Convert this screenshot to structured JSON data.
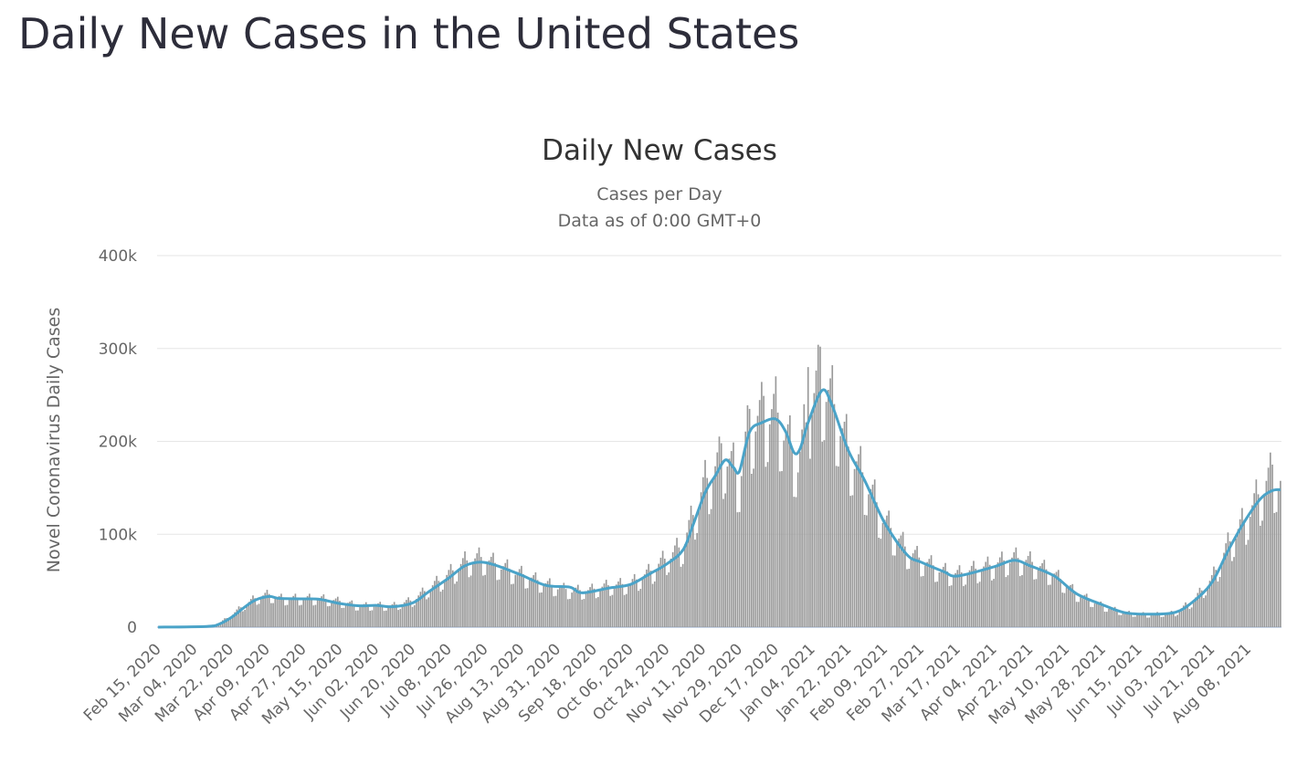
{
  "page": {
    "title": "Daily New Cases in the United States"
  },
  "chart_data": {
    "type": "bar",
    "title": "Daily New Cases",
    "subtitle": [
      "Cases per Day",
      "Data as of 0:00 GMT+0"
    ],
    "xlabel": "",
    "ylabel": "Novel Coronavirus Daily Cases",
    "ylim": [
      0,
      400000
    ],
    "yticks": [
      0,
      100000,
      200000,
      300000,
      400000
    ],
    "ytick_labels": [
      "0",
      "100k",
      "200k",
      "300k",
      "400k"
    ],
    "x_start": "2020-02-15",
    "x_end": "2021-08-24",
    "xtick_labels": [
      "Feb 15, 2020",
      "Mar 04, 2020",
      "Mar 22, 2020",
      "Apr 09, 2020",
      "Apr 27, 2020",
      "May 15, 2020",
      "Jun 02, 2020",
      "Jun 20, 2020",
      "Jul 08, 2020",
      "Jul 26, 2020",
      "Aug 13, 2020",
      "Aug 31, 2020",
      "Sep 18, 2020",
      "Oct 06, 2020",
      "Oct 24, 2020",
      "Nov 11, 2020",
      "Nov 29, 2020",
      "Dec 17, 2020",
      "Jan 04, 2021",
      "Jan 22, 2021",
      "Feb 09, 2021",
      "Feb 27, 2021",
      "Mar 17, 2021",
      "Apr 04, 2021",
      "Apr 22, 2021",
      "May 10, 2021",
      "May 28, 2021",
      "Jun 15, 2021",
      "Jul 03, 2021",
      "Jul 21, 2021",
      "Aug 08, 2021"
    ],
    "grid": true,
    "legend": "none",
    "series": [
      {
        "role": "daily-bars",
        "color": "#999999",
        "knots": [
          [
            "2020-02-15",
            0
          ],
          [
            "2020-03-10",
            1000
          ],
          [
            "2020-03-16",
            4000
          ],
          [
            "2020-03-22",
            12000
          ],
          [
            "2020-03-28",
            22000
          ],
          [
            "2020-04-04",
            31000
          ],
          [
            "2020-04-10",
            34000
          ],
          [
            "2020-04-15",
            30000
          ],
          [
            "2020-04-27",
            30000
          ],
          [
            "2020-05-05",
            30000
          ],
          [
            "2020-05-15",
            27000
          ],
          [
            "2020-05-25",
            22000
          ],
          [
            "2020-06-02",
            23000
          ],
          [
            "2020-06-10",
            22000
          ],
          [
            "2020-06-20",
            28000
          ],
          [
            "2020-06-28",
            40000
          ],
          [
            "2020-07-08",
            55000
          ],
          [
            "2020-07-16",
            68000
          ],
          [
            "2020-07-24",
            72000
          ],
          [
            "2020-08-01",
            65000
          ],
          [
            "2020-08-13",
            55000
          ],
          [
            "2020-08-25",
            45000
          ],
          [
            "2020-09-06",
            38000
          ],
          [
            "2020-09-15",
            38000
          ],
          [
            "2020-09-25",
            43000
          ],
          [
            "2020-10-06",
            45000
          ],
          [
            "2020-10-16",
            58000
          ],
          [
            "2020-10-24",
            72000
          ],
          [
            "2020-11-01",
            85000
          ],
          [
            "2020-11-06",
            115000
          ],
          [
            "2020-11-12",
            150000
          ],
          [
            "2020-11-17",
            165000
          ],
          [
            "2020-11-22",
            180000
          ],
          [
            "2020-11-29",
            155000
          ],
          [
            "2020-12-04",
            210000
          ],
          [
            "2020-12-10",
            220000
          ],
          [
            "2020-12-17",
            225000
          ],
          [
            "2020-12-22",
            200000
          ],
          [
            "2020-12-28",
            170000
          ],
          [
            "2021-01-02",
            220000
          ],
          [
            "2021-01-08",
            260000
          ],
          [
            "2021-01-14",
            235000
          ],
          [
            "2021-01-22",
            185000
          ],
          [
            "2021-01-30",
            155000
          ],
          [
            "2021-02-09",
            110000
          ],
          [
            "2021-02-20",
            80000
          ],
          [
            "2021-02-27",
            70000
          ],
          [
            "2021-03-10",
            58000
          ],
          [
            "2021-03-17",
            55000
          ],
          [
            "2021-04-04",
            65000
          ],
          [
            "2021-04-14",
            72000
          ],
          [
            "2021-04-22",
            68000
          ],
          [
            "2021-05-04",
            55000
          ],
          [
            "2021-05-15",
            35000
          ],
          [
            "2021-05-28",
            22000
          ],
          [
            "2021-06-08",
            15000
          ],
          [
            "2021-06-20",
            13000
          ],
          [
            "2021-07-03",
            15000
          ],
          [
            "2021-07-12",
            28000
          ],
          [
            "2021-07-21",
            50000
          ],
          [
            "2021-07-29",
            85000
          ],
          [
            "2021-08-06",
            110000
          ],
          [
            "2021-08-14",
            140000
          ],
          [
            "2021-08-20",
            160000
          ],
          [
            "2021-08-24",
            150000
          ]
        ],
        "weekly_pattern": [
          0.8,
          0.98,
          1.05,
          1.12,
          1.2,
          1.05,
          0.78
        ],
        "peaks": [
          [
            "2021-01-08",
            302000
          ],
          [
            "2021-01-02",
            280000
          ],
          [
            "2020-12-11",
            249000
          ],
          [
            "2020-12-04",
            235000
          ],
          [
            "2020-11-20",
            198000
          ],
          [
            "2021-08-20",
            175000
          ]
        ]
      },
      {
        "role": "7-day-average-line",
        "color": "#4aa3c8",
        "points": [
          [
            "2020-02-15",
            0
          ],
          [
            "2020-03-10",
            800
          ],
          [
            "2020-03-16",
            3000
          ],
          [
            "2020-03-22",
            10000
          ],
          [
            "2020-03-28",
            20000
          ],
          [
            "2020-04-03",
            29000
          ],
          [
            "2020-04-10",
            33000
          ],
          [
            "2020-04-15",
            31000
          ],
          [
            "2020-04-27",
            30500
          ],
          [
            "2020-05-05",
            30000
          ],
          [
            "2020-05-15",
            25500
          ],
          [
            "2020-05-25",
            23000
          ],
          [
            "2020-06-02",
            23500
          ],
          [
            "2020-06-10",
            22000
          ],
          [
            "2020-06-20",
            26000
          ],
          [
            "2020-06-28",
            38000
          ],
          [
            "2020-07-08",
            53000
          ],
          [
            "2020-07-16",
            66000
          ],
          [
            "2020-07-24",
            70000
          ],
          [
            "2020-08-01",
            66000
          ],
          [
            "2020-08-13",
            56000
          ],
          [
            "2020-08-25",
            45000
          ],
          [
            "2020-09-06",
            43000
          ],
          [
            "2020-09-12",
            37000
          ],
          [
            "2020-09-25",
            42000
          ],
          [
            "2020-10-06",
            46000
          ],
          [
            "2020-10-16",
            58000
          ],
          [
            "2020-10-24",
            68000
          ],
          [
            "2020-11-01",
            83000
          ],
          [
            "2020-11-06",
            110000
          ],
          [
            "2020-11-12",
            145000
          ],
          [
            "2020-11-17",
            163000
          ],
          [
            "2020-11-22",
            180000
          ],
          [
            "2020-11-26",
            172000
          ],
          [
            "2020-11-29",
            168000
          ],
          [
            "2020-12-04",
            210000
          ],
          [
            "2020-12-10",
            220000
          ],
          [
            "2020-12-17",
            224000
          ],
          [
            "2020-12-22",
            210000
          ],
          [
            "2020-12-26",
            188000
          ],
          [
            "2020-12-29",
            192000
          ],
          [
            "2021-01-02",
            220000
          ],
          [
            "2021-01-09",
            255000
          ],
          [
            "2021-01-14",
            238000
          ],
          [
            "2021-01-22",
            190000
          ],
          [
            "2021-01-30",
            158000
          ],
          [
            "2021-02-09",
            112000
          ],
          [
            "2021-02-20",
            78000
          ],
          [
            "2021-02-27",
            70000
          ],
          [
            "2021-03-10",
            60000
          ],
          [
            "2021-03-17",
            55000
          ],
          [
            "2021-04-04",
            65000
          ],
          [
            "2021-04-14",
            72000
          ],
          [
            "2021-04-22",
            66000
          ],
          [
            "2021-05-04",
            55000
          ],
          [
            "2021-05-15",
            36000
          ],
          [
            "2021-05-28",
            24000
          ],
          [
            "2021-06-08",
            15500
          ],
          [
            "2021-06-20",
            14000
          ],
          [
            "2021-07-03",
            16000
          ],
          [
            "2021-07-12",
            28000
          ],
          [
            "2021-07-21",
            48000
          ],
          [
            "2021-07-29",
            82000
          ],
          [
            "2021-08-06",
            113000
          ],
          [
            "2021-08-14",
            138000
          ],
          [
            "2021-08-20",
            147000
          ],
          [
            "2021-08-24",
            148000
          ]
        ]
      }
    ]
  }
}
